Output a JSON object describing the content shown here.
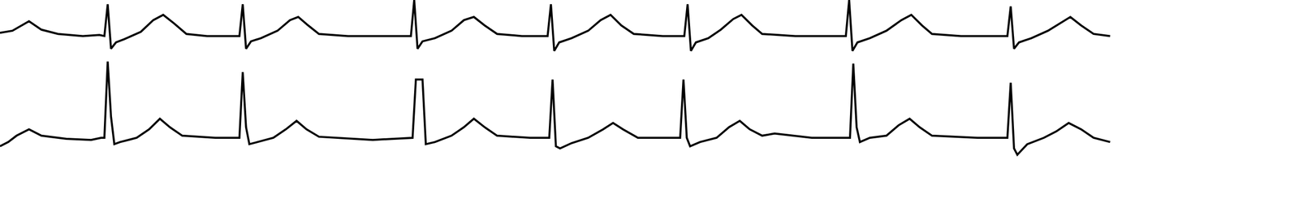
{
  "chart_data": [
    {
      "type": "line",
      "color": "#000000",
      "grid": false,
      "tick_labels": false,
      "xlim": [
        0,
        1568
      ],
      "ylim": [
        -22,
        34
      ],
      "x": [
        0,
        15,
        35,
        50,
        70,
        100,
        120,
        126,
        130,
        134,
        140,
        150,
        170,
        185,
        197,
        210,
        225,
        250,
        280,
        289,
        293,
        297,
        303,
        315,
        335,
        350,
        360,
        372,
        385,
        420,
        460,
        490,
        496,
        500,
        504,
        510,
        525,
        545,
        560,
        572,
        585,
        600,
        630,
        655,
        661,
        665,
        669,
        675,
        690,
        710,
        725,
        737,
        750,
        765,
        800,
        820,
        826,
        830,
        834,
        840,
        855,
        870,
        885,
        895,
        908,
        920,
        960,
        1015,
        1021,
        1025,
        1029,
        1035,
        1050,
        1070,
        1088,
        1100,
        1113,
        1125,
        1160,
        1210,
        1216,
        1220,
        1224,
        1230,
        1245,
        1265,
        1280,
        1292,
        1305,
        1320,
        1340
      ],
      "values": [
        3,
        5,
        14,
        6,
        2,
        0,
        1,
        0,
        30,
        -12,
        -6,
        -3,
        4,
        15,
        20,
        12,
        2,
        0,
        0,
        0,
        30,
        -12,
        -5,
        -2,
        5,
        15,
        18,
        10,
        2,
        0,
        0,
        0,
        0,
        34,
        -12,
        -5,
        -2,
        5,
        15,
        18,
        10,
        2,
        0,
        0,
        0,
        30,
        -14,
        -6,
        -2,
        5,
        15,
        20,
        10,
        2,
        0,
        0,
        0,
        30,
        -14,
        -6,
        -2,
        6,
        16,
        20,
        10,
        2,
        0,
        0,
        0,
        34,
        -14,
        -6,
        -2,
        5,
        15,
        20,
        10,
        2,
        0,
        0,
        0,
        28,
        -12,
        -6,
        -2,
        5,
        12,
        18,
        10,
        2,
        0
      ]
    },
    {
      "type": "line",
      "color": "#000000",
      "grid": false,
      "tick_labels": false,
      "xlim": [
        0,
        1568
      ],
      "ylim": [
        -30,
        74
      ],
      "x": [
        0,
        10,
        20,
        35,
        50,
        80,
        110,
        122,
        126,
        130,
        134,
        138,
        145,
        165,
        180,
        193,
        205,
        220,
        260,
        283,
        289,
        293,
        297,
        301,
        310,
        330,
        345,
        358,
        370,
        385,
        450,
        495,
        498,
        502,
        510,
        514,
        525,
        545,
        560,
        572,
        585,
        600,
        640,
        660,
        663,
        667,
        671,
        676,
        690,
        710,
        728,
        740,
        752,
        770,
        810,
        818,
        821,
        825,
        829,
        833,
        845,
        865,
        880,
        893,
        905,
        920,
        935,
        980,
        1020,
        1026,
        1030,
        1034,
        1038,
        1050,
        1070,
        1085,
        1098,
        1110,
        1125,
        1180,
        1210,
        1216,
        1220,
        1224,
        1228,
        1240,
        1260,
        1275,
        1290,
        1305,
        1320,
        1340
      ],
      "values": [
        -8,
        -4,
        2,
        8,
        2,
        -1,
        -2,
        0,
        0,
        72,
        20,
        -6,
        -4,
        0,
        8,
        18,
        10,
        2,
        0,
        0,
        0,
        62,
        10,
        -6,
        -4,
        0,
        8,
        16,
        8,
        1,
        -2,
        0,
        0,
        55,
        55,
        -6,
        -4,
        2,
        10,
        18,
        10,
        2,
        0,
        0,
        0,
        55,
        -8,
        -10,
        -5,
        0,
        8,
        14,
        8,
        0,
        0,
        0,
        0,
        55,
        0,
        -8,
        -4,
        0,
        10,
        16,
        8,
        2,
        4,
        0,
        0,
        0,
        70,
        10,
        -4,
        0,
        2,
        12,
        18,
        10,
        2,
        0,
        0,
        0,
        52,
        -10,
        -16,
        -6,
        0,
        6,
        14,
        8,
        0,
        -4
      ]
    }
  ]
}
